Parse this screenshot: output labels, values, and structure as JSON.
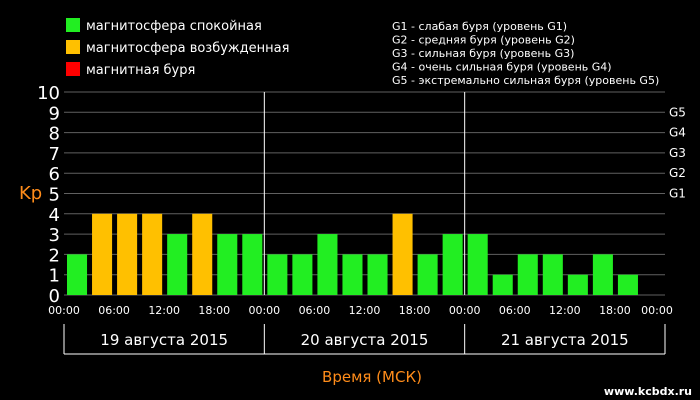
{
  "legend_left": [
    {
      "label": "магнитосфера спокойная",
      "color": "#22ee22"
    },
    {
      "label": "магнитосфера возбужденная",
      "color": "#ffc000"
    },
    {
      "label": "магнитная буря",
      "color": "#ff0000"
    }
  ],
  "legend_right": [
    "G1 - слабая буря (уровень G1)",
    "G2 - средняя буря (уровень G2)",
    "G3 - сильная буря (уровень G3)",
    "G4 - очень сильная буря (уровень G4)",
    "G5 - экстремально сильная буря (уровень G5)"
  ],
  "chart_data": {
    "type": "bar",
    "ylabel": "Kp",
    "xlabel": "Время (МСК)",
    "ylim": [
      0,
      10
    ],
    "y_ticks": [
      "0",
      "1",
      "2",
      "3",
      "4",
      "5",
      "6",
      "7",
      "8",
      "9",
      "10"
    ],
    "g_levels": [
      {
        "label": "G1",
        "kp": 5
      },
      {
        "label": "G2",
        "kp": 6
      },
      {
        "label": "G3",
        "kp": 7
      },
      {
        "label": "G4",
        "kp": 8
      },
      {
        "label": "G5",
        "kp": 9
      }
    ],
    "time_ticks": [
      "00:00",
      "06:00",
      "12:00",
      "18:00"
    ],
    "end_tick": "00:00",
    "days": [
      {
        "label": "19 августа 2015",
        "values": [
          2,
          4,
          4,
          4,
          3,
          4,
          3,
          3
        ]
      },
      {
        "label": "20 августа 2015",
        "values": [
          2,
          2,
          3,
          2,
          2,
          4,
          2,
          3
        ]
      },
      {
        "label": "21 августа 2015",
        "values": [
          3,
          1,
          2,
          2,
          1,
          2,
          1
        ]
      }
    ],
    "color_rule": {
      "quiet_max": 3,
      "active_max": 4
    },
    "colors": {
      "quiet": "#22ee22",
      "active": "#ffc000",
      "storm": "#ff0000",
      "axis_text": "#ff8c1a",
      "grid": "#606060"
    }
  },
  "watermark": "www.kcbdx.ru"
}
